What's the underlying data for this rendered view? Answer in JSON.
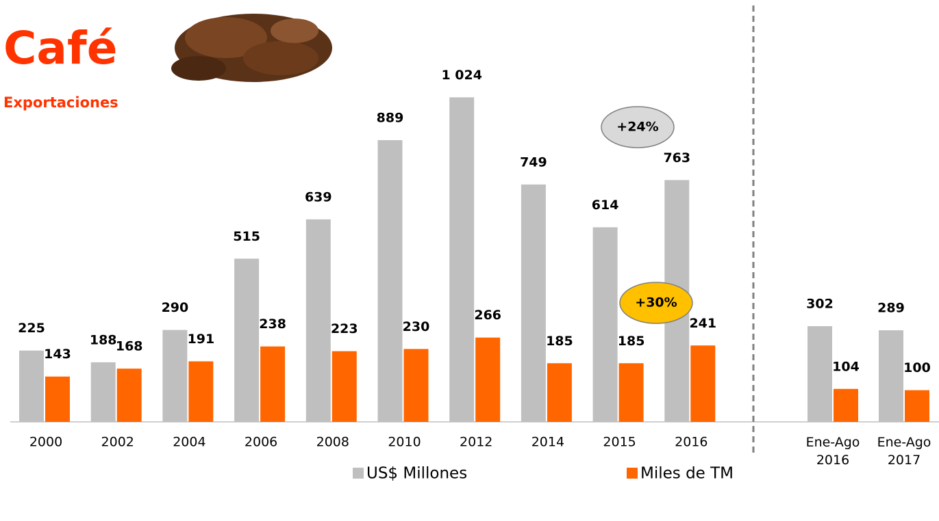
{
  "chart_data": [
    {
      "type": "bar",
      "title": "Café",
      "subtitle": "Exportaciones",
      "categories": [
        "2000",
        "2002",
        "2004",
        "2006",
        "2008",
        "2010",
        "2012",
        "2014",
        "2015",
        "2016"
      ],
      "series": [
        {
          "name": "US$ Millones",
          "color": "#bfbfbf",
          "values": [
            225,
            188,
            290,
            515,
            639,
            889,
            1024,
            749,
            614,
            763
          ],
          "value_labels": [
            "225",
            "188",
            "290",
            "515",
            "639",
            "889",
            "1 024",
            "749",
            "614",
            "763"
          ]
        },
        {
          "name": "Miles de TM",
          "color": "#ff6600",
          "values": [
            143,
            168,
            191,
            238,
            223,
            230,
            266,
            185,
            185,
            241
          ]
        }
      ],
      "annotations": [
        {
          "text": "+24%",
          "color": "#d9d9d9"
        },
        {
          "text": "+30%",
          "color": "#ffc000"
        }
      ]
    },
    {
      "type": "bar",
      "categories": [
        "Ene-Ago 2016",
        "Ene-Ago 2017"
      ],
      "series": [
        {
          "color": "#bfbfbf",
          "values": [
            302,
            289
          ]
        },
        {
          "color": "#ff6600",
          "values": [
            104,
            100
          ]
        }
      ]
    }
  ]
}
